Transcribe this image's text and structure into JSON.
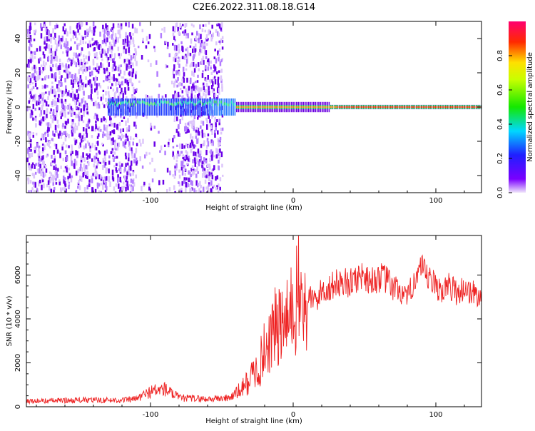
{
  "title": "C2E6.2022.311.08.18.G14",
  "colors": {
    "snr_line": "#ee2222",
    "frame": "#000000"
  },
  "chart_data": [
    {
      "type": "heatmap",
      "xlabel": "Height of straight line (km)",
      "ylabel": "Frequency (Hz)",
      "xlim": [
        -187,
        132
      ],
      "ylim": [
        -50,
        50
      ],
      "x_ticks": [
        -100,
        0,
        100
      ],
      "y_ticks": [
        -40,
        -20,
        0,
        20,
        40
      ],
      "colorbar": {
        "label": "Normalized spectral amplitude",
        "range": [
          0,
          1
        ],
        "ticks": [
          "0.0",
          "0.2",
          "0.4",
          "0.6",
          "0.8"
        ],
        "colormap": "rainbow (purple-blue-cyan-green-yellow-red-magenta)"
      },
      "description_values": {
        "noise_region_km": [
          -187,
          -50
        ],
        "signal_center_hz": 0,
        "signal_peak_start_km": -40
      }
    },
    {
      "type": "line",
      "xlabel": "Height of straight line (km)",
      "ylabel": "SNR (10 * v/v)",
      "xlim": [
        -187,
        132
      ],
      "ylim": [
        0,
        7800
      ],
      "x_ticks": [
        -100,
        0,
        100
      ],
      "y_ticks": [
        0,
        2000,
        4000,
        6000
      ],
      "series": [
        {
          "x": [
            -187,
            -150,
            -120,
            -110,
            -100,
            -90,
            -80,
            -60,
            -45,
            -38,
            -32,
            -28,
            -24,
            -20,
            -16,
            -12,
            -8,
            -4,
            0,
            4,
            8,
            12,
            16,
            20,
            25,
            30,
            35,
            40,
            45,
            50,
            55,
            60,
            65,
            70,
            75,
            80,
            85,
            90,
            95,
            100,
            105,
            110,
            115,
            120,
            125,
            132
          ],
          "y": [
            250,
            300,
            300,
            350,
            700,
            800,
            400,
            350,
            400,
            700,
            1100,
            1500,
            1800,
            2600,
            3200,
            3600,
            3600,
            3800,
            4500,
            5200,
            4400,
            5000,
            4800,
            5300,
            5400,
            5600,
            5700,
            5600,
            5900,
            6000,
            5700,
            5900,
            5800,
            5400,
            5300,
            4800,
            5900,
            6200,
            5800,
            5500,
            5300,
            5500,
            5200,
            5400,
            5200,
            5000
          ]
        }
      ]
    }
  ]
}
